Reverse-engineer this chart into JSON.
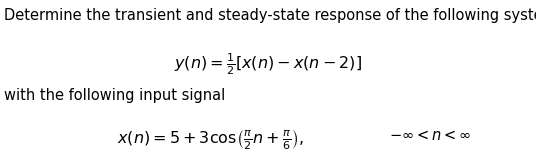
{
  "title_text": "Determine the transient and steady-state response of the following system,",
  "label_text": "with the following input signal",
  "bg_color": "#ffffff",
  "text_color": "#000000",
  "fontsize_title": 10.5,
  "fontsize_eq": 11.5,
  "fontsize_label": 10.5,
  "fontsize_range": 10.5
}
